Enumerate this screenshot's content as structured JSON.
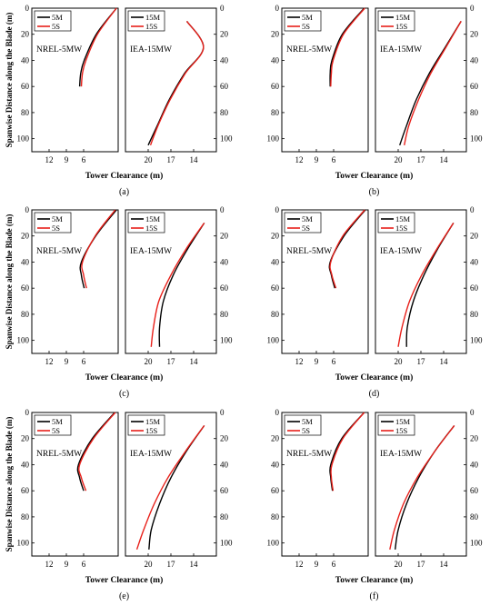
{
  "figure": {
    "ylabel": "Spanwise Distance along the Blade (m)",
    "xlabel": "Tower Clearance (m)"
  },
  "colors": {
    "m_series": "#000000",
    "s_series": "#e8201a"
  },
  "panels": [
    {
      "label": "(a)",
      "series": [
        {
          "name": "5M",
          "points": [
            [
              0,
              0.3
            ],
            [
              20,
              3.8
            ],
            [
              40,
              5.9
            ],
            [
              50,
              6.5
            ],
            [
              60,
              6.7
            ]
          ]
        },
        {
          "name": "5S",
          "points": [
            [
              0,
              0.3
            ],
            [
              20,
              3.6
            ],
            [
              40,
              5.6
            ],
            [
              50,
              6.2
            ],
            [
              60,
              6.4
            ]
          ]
        },
        {
          "name": "15M",
          "points": [
            [
              10,
              -14.9
            ],
            [
              30,
              -12.7
            ],
            [
              50,
              -15.2
            ],
            [
              70,
              -17.2
            ],
            [
              90,
              -18.8
            ],
            [
              105,
              -20.0
            ]
          ]
        },
        {
          "name": "15S",
          "points": [
            [
              10,
              -14.9
            ],
            [
              30,
              -12.7
            ],
            [
              50,
              -15.1
            ],
            [
              70,
              -17.1
            ],
            [
              90,
              -18.7
            ],
            [
              105,
              -19.7
            ]
          ]
        }
      ]
    },
    {
      "label": "(b)",
      "series": [
        {
          "name": "5M",
          "points": [
            [
              0,
              0.7
            ],
            [
              20,
              4.5
            ],
            [
              40,
              6.3
            ],
            [
              50,
              6.6
            ],
            [
              60,
              6.6
            ]
          ]
        },
        {
          "name": "5S",
          "points": [
            [
              0,
              0.6
            ],
            [
              20,
              4.3
            ],
            [
              40,
              6.1
            ],
            [
              50,
              6.4
            ],
            [
              60,
              6.5
            ]
          ]
        },
        {
          "name": "15M",
          "points": [
            [
              10,
              -11.7
            ],
            [
              30,
              -13.8
            ],
            [
              50,
              -15.9
            ],
            [
              70,
              -17.6
            ],
            [
              90,
              -18.9
            ],
            [
              105,
              -19.8
            ]
          ]
        },
        {
          "name": "15S",
          "points": [
            [
              10,
              -11.7
            ],
            [
              30,
              -13.7
            ],
            [
              50,
              -15.7
            ],
            [
              70,
              -17.3
            ],
            [
              90,
              -18.6
            ],
            [
              105,
              -19.2
            ]
          ]
        }
      ]
    },
    {
      "label": "(c)",
      "series": [
        {
          "name": "5M",
          "points": [
            [
              0,
              0.3
            ],
            [
              20,
              3.9
            ],
            [
              40,
              6.4
            ],
            [
              50,
              6.4
            ],
            [
              60,
              5.9
            ]
          ]
        },
        {
          "name": "5S",
          "points": [
            [
              0,
              0.5
            ],
            [
              20,
              4.0
            ],
            [
              40,
              6.2
            ],
            [
              50,
              6.0
            ],
            [
              60,
              5.5
            ]
          ]
        },
        {
          "name": "15M",
          "points": [
            [
              10,
              -12.6
            ],
            [
              30,
              -14.8
            ],
            [
              50,
              -16.7
            ],
            [
              70,
              -18.0
            ],
            [
              90,
              -18.5
            ],
            [
              105,
              -18.5
            ]
          ]
        },
        {
          "name": "15S",
          "points": [
            [
              10,
              -12.6
            ],
            [
              30,
              -15.0
            ],
            [
              50,
              -17.0
            ],
            [
              70,
              -18.6
            ],
            [
              90,
              -19.3
            ],
            [
              105,
              -19.6
            ]
          ]
        }
      ]
    },
    {
      "label": "(d)",
      "series": [
        {
          "name": "5M",
          "points": [
            [
              0,
              0.5
            ],
            [
              20,
              4.2
            ],
            [
              40,
              6.6
            ],
            [
              50,
              6.4
            ],
            [
              60,
              5.8
            ]
          ]
        },
        {
          "name": "5S",
          "points": [
            [
              0,
              0.6
            ],
            [
              20,
              4.4
            ],
            [
              40,
              6.5
            ],
            [
              50,
              6.3
            ],
            [
              60,
              5.6
            ]
          ]
        },
        {
          "name": "15M",
          "points": [
            [
              10,
              -12.7
            ],
            [
              30,
              -14.8
            ],
            [
              50,
              -16.6
            ],
            [
              70,
              -18.0
            ],
            [
              90,
              -18.8
            ],
            [
              105,
              -18.9
            ]
          ]
        },
        {
          "name": "15S",
          "points": [
            [
              10,
              -12.7
            ],
            [
              30,
              -14.9
            ],
            [
              50,
              -16.9
            ],
            [
              70,
              -18.5
            ],
            [
              90,
              -19.5
            ],
            [
              105,
              -20.0
            ]
          ]
        }
      ]
    },
    {
      "label": "(e)",
      "series": [
        {
          "name": "5M",
          "points": [
            [
              0,
              0.6
            ],
            [
              20,
              4.5
            ],
            [
              40,
              6.9
            ],
            [
              50,
              6.7
            ],
            [
              60,
              6.0
            ]
          ]
        },
        {
          "name": "5S",
          "points": [
            [
              0,
              0.5
            ],
            [
              20,
              4.3
            ],
            [
              40,
              6.7
            ],
            [
              50,
              6.4
            ],
            [
              60,
              5.6
            ]
          ]
        },
        {
          "name": "15M",
          "points": [
            [
              10,
              -12.6
            ],
            [
              30,
              -15.0
            ],
            [
              50,
              -17.0
            ],
            [
              70,
              -18.5
            ],
            [
              90,
              -19.6
            ],
            [
              105,
              -19.9
            ]
          ]
        },
        {
          "name": "15S",
          "points": [
            [
              10,
              -12.6
            ],
            [
              30,
              -15.1
            ],
            [
              50,
              -17.4
            ],
            [
              70,
              -19.2
            ],
            [
              90,
              -20.6
            ],
            [
              105,
              -21.5
            ]
          ]
        }
      ]
    },
    {
      "label": "(f)",
      "series": [
        {
          "name": "5M",
          "points": [
            [
              0,
              0.7
            ],
            [
              20,
              4.6
            ],
            [
              40,
              6.5
            ],
            [
              50,
              6.5
            ],
            [
              60,
              6.2
            ]
          ]
        },
        {
          "name": "5S",
          "points": [
            [
              0,
              0.7
            ],
            [
              20,
              4.4
            ],
            [
              40,
              6.3
            ],
            [
              50,
              6.4
            ],
            [
              60,
              6.1
            ]
          ]
        },
        {
          "name": "15M",
          "points": [
            [
              10,
              -12.6
            ],
            [
              30,
              -15.2
            ],
            [
              50,
              -17.3
            ],
            [
              70,
              -18.9
            ],
            [
              90,
              -20.0
            ],
            [
              105,
              -20.4
            ]
          ]
        },
        {
          "name": "15S",
          "points": [
            [
              10,
              -12.6
            ],
            [
              30,
              -15.2
            ],
            [
              50,
              -17.5
            ],
            [
              70,
              -19.3
            ],
            [
              90,
              -20.5
            ],
            [
              105,
              -21.1
            ]
          ]
        }
      ]
    }
  ],
  "chart_data": {
    "type": "line",
    "xlabel": "Tower Clearance (m)",
    "ylabel": "Spanwise Distance along the Blade (m)",
    "left_subplot": {
      "title": "NREL-5MW",
      "xlim": [
        15,
        0
      ],
      "xticks": [
        12,
        9,
        6
      ],
      "ylim": [
        110,
        0
      ],
      "yticks": [
        0,
        20,
        40,
        60,
        80,
        100
      ]
    },
    "right_subplot": {
      "title": "IEA-15MW",
      "xlim": [
        -23,
        -11
      ],
      "xticklabels": [
        "20",
        "17",
        "14"
      ],
      "xtick_values": [
        -20,
        -17,
        -14
      ],
      "ylim": [
        110,
        0
      ],
      "yticks": [
        0,
        20,
        40,
        60,
        80,
        100
      ]
    },
    "legend_left": [
      "5M",
      "5S"
    ],
    "legend_right": [
      "15M",
      "15S"
    ],
    "grid": false,
    "legend_location": "top-left of each subplot"
  }
}
